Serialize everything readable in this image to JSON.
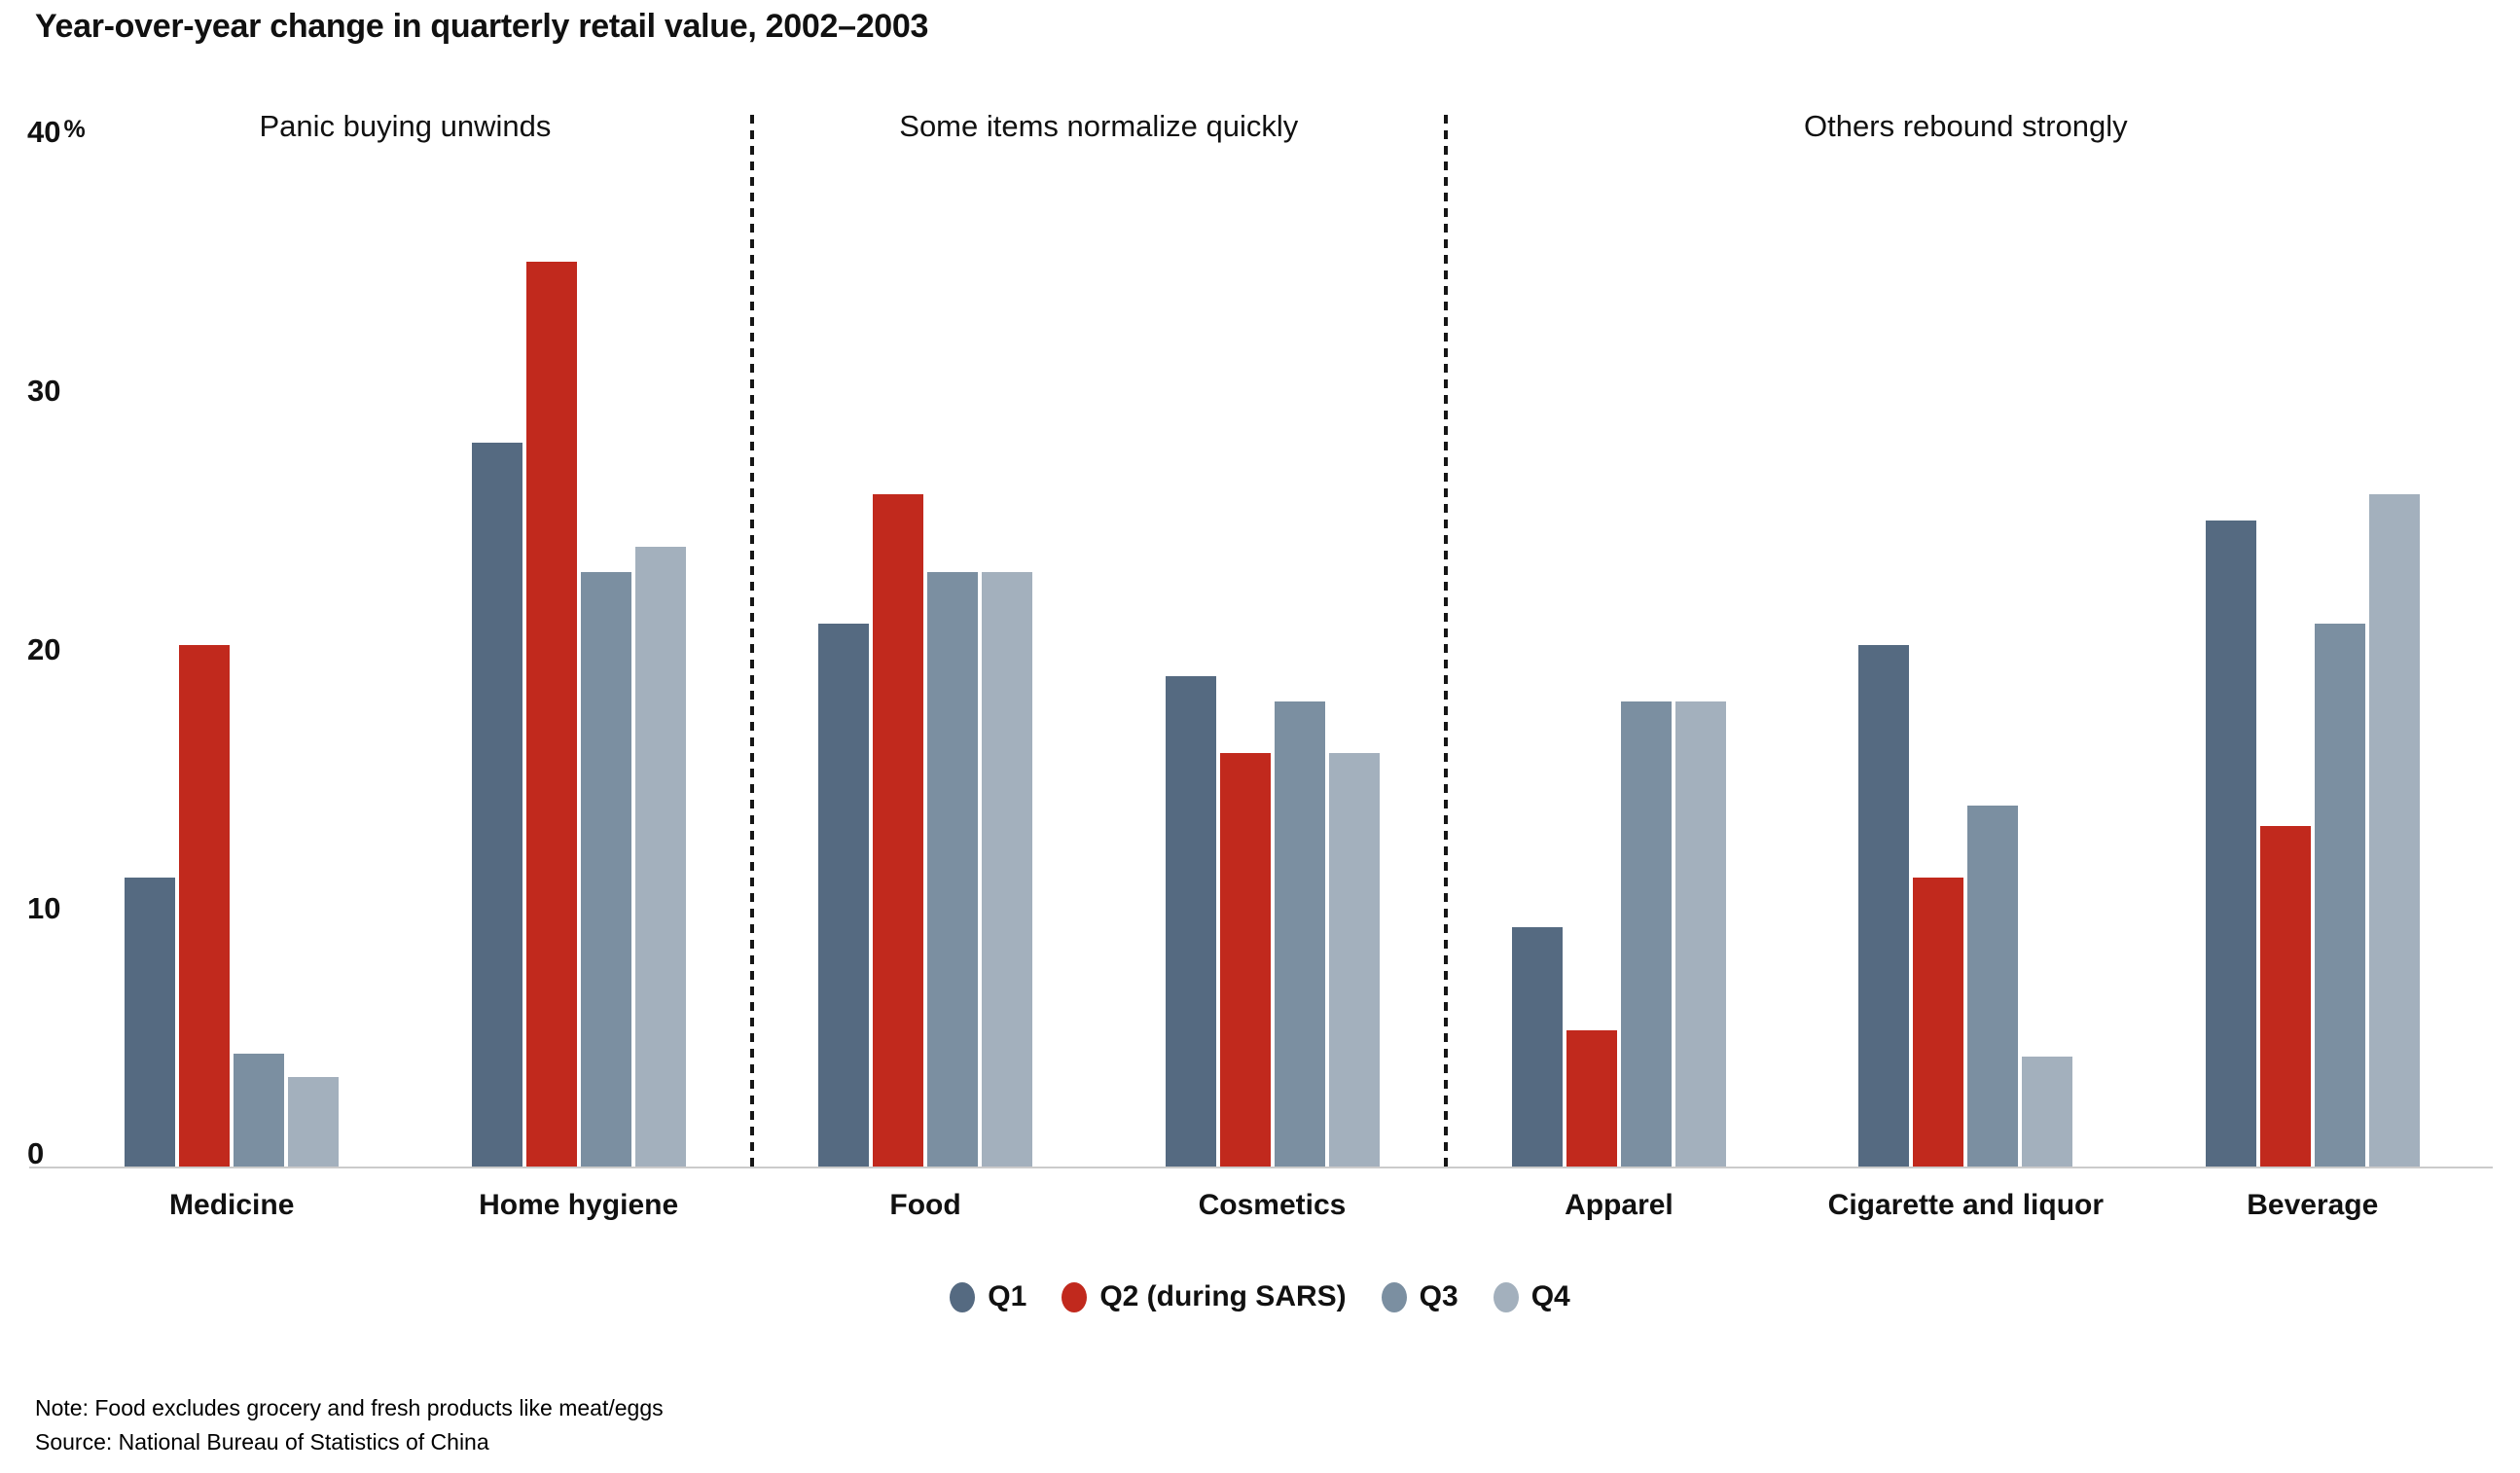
{
  "title": "Year-over-year change in quarterly retail value, 2002–2003",
  "chart_data": {
    "type": "bar",
    "title": "Year-over-year change in quarterly retail value, 2002–2003",
    "categories": [
      "Medicine",
      "Home hygiene",
      "Food",
      "Cosmetics",
      "Apparel",
      "Cigarette and liquor",
      "Beverage"
    ],
    "sections": [
      {
        "label": "Panic buying unwinds",
        "category_span": [
          "Medicine",
          "Home hygiene"
        ]
      },
      {
        "label": "Some items normalize quickly",
        "category_span": [
          "Food",
          "Cosmetics"
        ]
      },
      {
        "label": "Others rebound strongly",
        "category_span": [
          "Apparel",
          "Cigarette and liquor",
          "Beverage"
        ]
      }
    ],
    "series": [
      {
        "name": "Q1",
        "color": "#556a81",
        "values": [
          11.2,
          28,
          21,
          19,
          9.3,
          20.2,
          25
        ]
      },
      {
        "name": "Q2 (during SARS)",
        "color": "#c1291d",
        "values": [
          20.2,
          35,
          26,
          16,
          5.3,
          11.2,
          13.2
        ]
      },
      {
        "name": "Q3",
        "color": "#7b8fa1",
        "values": [
          4.4,
          23,
          23,
          18,
          18,
          14,
          21
        ]
      },
      {
        "name": "Q4",
        "color": "#a3b0bd",
        "values": [
          3.5,
          24,
          23,
          16,
          18,
          4.3,
          26
        ]
      }
    ],
    "xlabel": "",
    "ylabel": "",
    "ylim": [
      0,
      40
    ],
    "yticks": [
      {
        "v": 0,
        "label": "0"
      },
      {
        "v": 10,
        "label": "10"
      },
      {
        "v": 20,
        "label": "20"
      },
      {
        "v": 30,
        "label": "30"
      },
      {
        "v": 40,
        "label": "40",
        "suffix": "%"
      }
    ],
    "grid": false,
    "legend_position": "bottom"
  },
  "legend": {
    "items": [
      "Q1",
      "Q2 (during SARS)",
      "Q3",
      "Q4"
    ]
  },
  "notes": {
    "note": "Note: Food excludes grocery and fresh products like meat/eggs",
    "source": "Source: National Bureau of Statistics of China"
  },
  "colors": {
    "axis_line": "#cbcbcb",
    "divider": "#161616",
    "text": "#111111"
  }
}
